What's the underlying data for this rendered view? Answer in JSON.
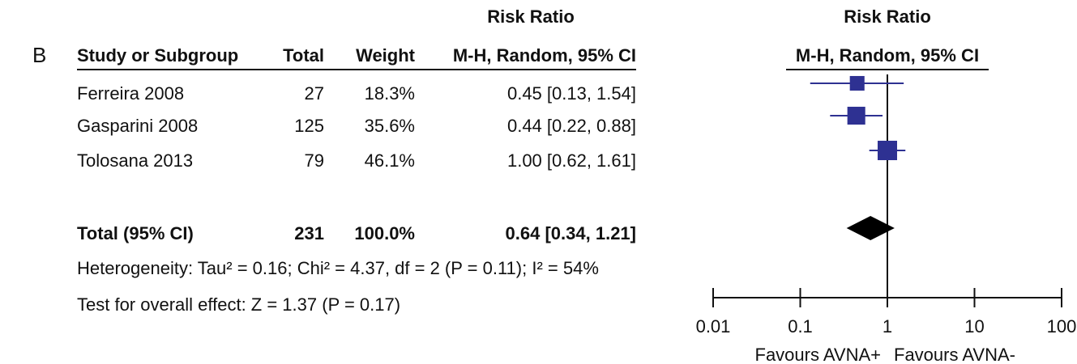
{
  "panel_label": "B",
  "table": {
    "header_group": "Risk Ratio",
    "columns": [
      "Study or Subgroup",
      "Total",
      "Weight",
      "M-H, Random, 95% CI"
    ],
    "rows": [
      [
        "Ferreira 2008",
        "27",
        "18.3%",
        "0.45 [0.13, 1.54]"
      ],
      [
        "Gasparini 2008",
        "125",
        "35.6%",
        "0.44 [0.22, 0.88]"
      ],
      [
        "Tolosana 2013",
        "79",
        "46.1%",
        "1.00 [0.62, 1.61]"
      ]
    ],
    "total": [
      "Total (95% CI)",
      "231",
      "100.0%",
      "0.64 [0.34, 1.21]"
    ],
    "heterogeneity": "Heterogeneity: Tau² = 0.16; Chi² = 4.37, df = 2 (P = 0.11); I² = 54%",
    "overall_effect": "Test for overall effect: Z = 1.37 (P = 0.17)"
  },
  "chart_data": {
    "type": "forest",
    "title": "Risk Ratio",
    "subtitle": "M-H, Random, 95% CI",
    "log_scale": true,
    "xlim": [
      0.01,
      100
    ],
    "xticks": [
      0.01,
      0.1,
      1,
      10,
      100
    ],
    "x_labels": [
      "Favours AVNA+",
      "Favours AVNA-"
    ],
    "color": "#2e3192",
    "pooled_color": "#000000",
    "estimates": [
      0.45,
      0.44,
      1.0
    ],
    "lower": [
      0.13,
      0.22,
      0.62
    ],
    "upper": [
      1.54,
      0.88,
      1.61
    ],
    "weights": [
      18.3,
      35.6,
      46.1
    ],
    "pooled": {
      "estimate": 0.64,
      "lower": 0.34,
      "upper": 1.21
    }
  }
}
